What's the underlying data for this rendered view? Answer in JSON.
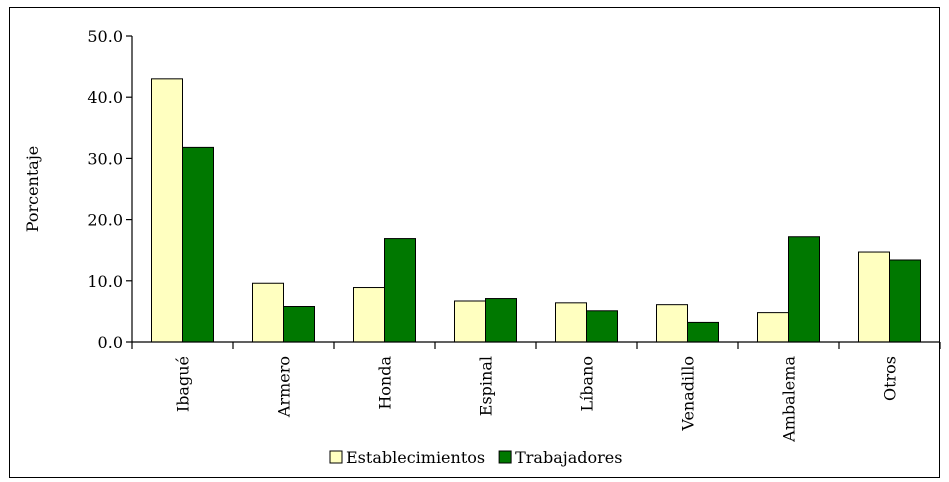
{
  "chart_data": {
    "type": "bar",
    "title": "",
    "xlabel": "",
    "ylabel": "Porcentaje",
    "ylim": [
      0,
      50
    ],
    "yticks": [
      "0.0",
      "10.0",
      "20.0",
      "30.0",
      "40.0",
      "50.0"
    ],
    "categories": [
      "Ibagué",
      "Armero",
      "Honda",
      "Espinal",
      "Líbano",
      "Venadillo",
      "Ambalema",
      "Otros"
    ],
    "series": [
      {
        "name": "Establecimientos",
        "color": "#ffffc0",
        "values": [
          43.0,
          9.6,
          8.9,
          6.7,
          6.4,
          6.1,
          4.8,
          14.7
        ]
      },
      {
        "name": "Trabajadores",
        "color": "#007800",
        "values": [
          31.8,
          5.8,
          16.9,
          7.1,
          5.1,
          3.2,
          17.2,
          13.4
        ]
      }
    ],
    "grid": false,
    "legend_position": "bottom"
  }
}
